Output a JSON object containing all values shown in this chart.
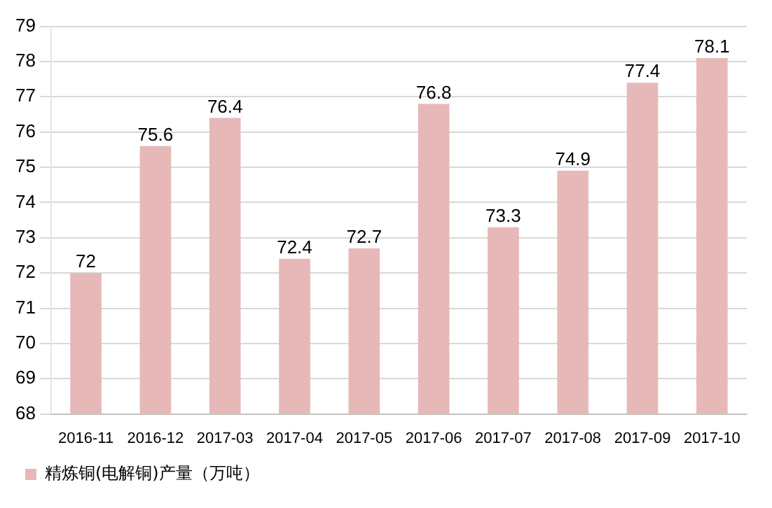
{
  "chart_data": {
    "type": "bar",
    "categories": [
      "2016-11",
      "2016-12",
      "2017-03",
      "2017-04",
      "2017-05",
      "2017-06",
      "2017-07",
      "2017-08",
      "2017-09",
      "2017-10"
    ],
    "series": [
      {
        "name": "精炼铜(电解铜)产量（万吨）",
        "color": "#e6b9b8",
        "values": [
          72,
          75.6,
          76.4,
          72.4,
          72.7,
          76.8,
          73.3,
          74.9,
          77.4,
          78.1
        ]
      }
    ],
    "ylim": [
      68,
      79
    ],
    "yticks": [
      68,
      69,
      70,
      71,
      72,
      73,
      74,
      75,
      76,
      77,
      78,
      79
    ],
    "grid": "y",
    "legend": "bottom",
    "data_labels": true
  }
}
